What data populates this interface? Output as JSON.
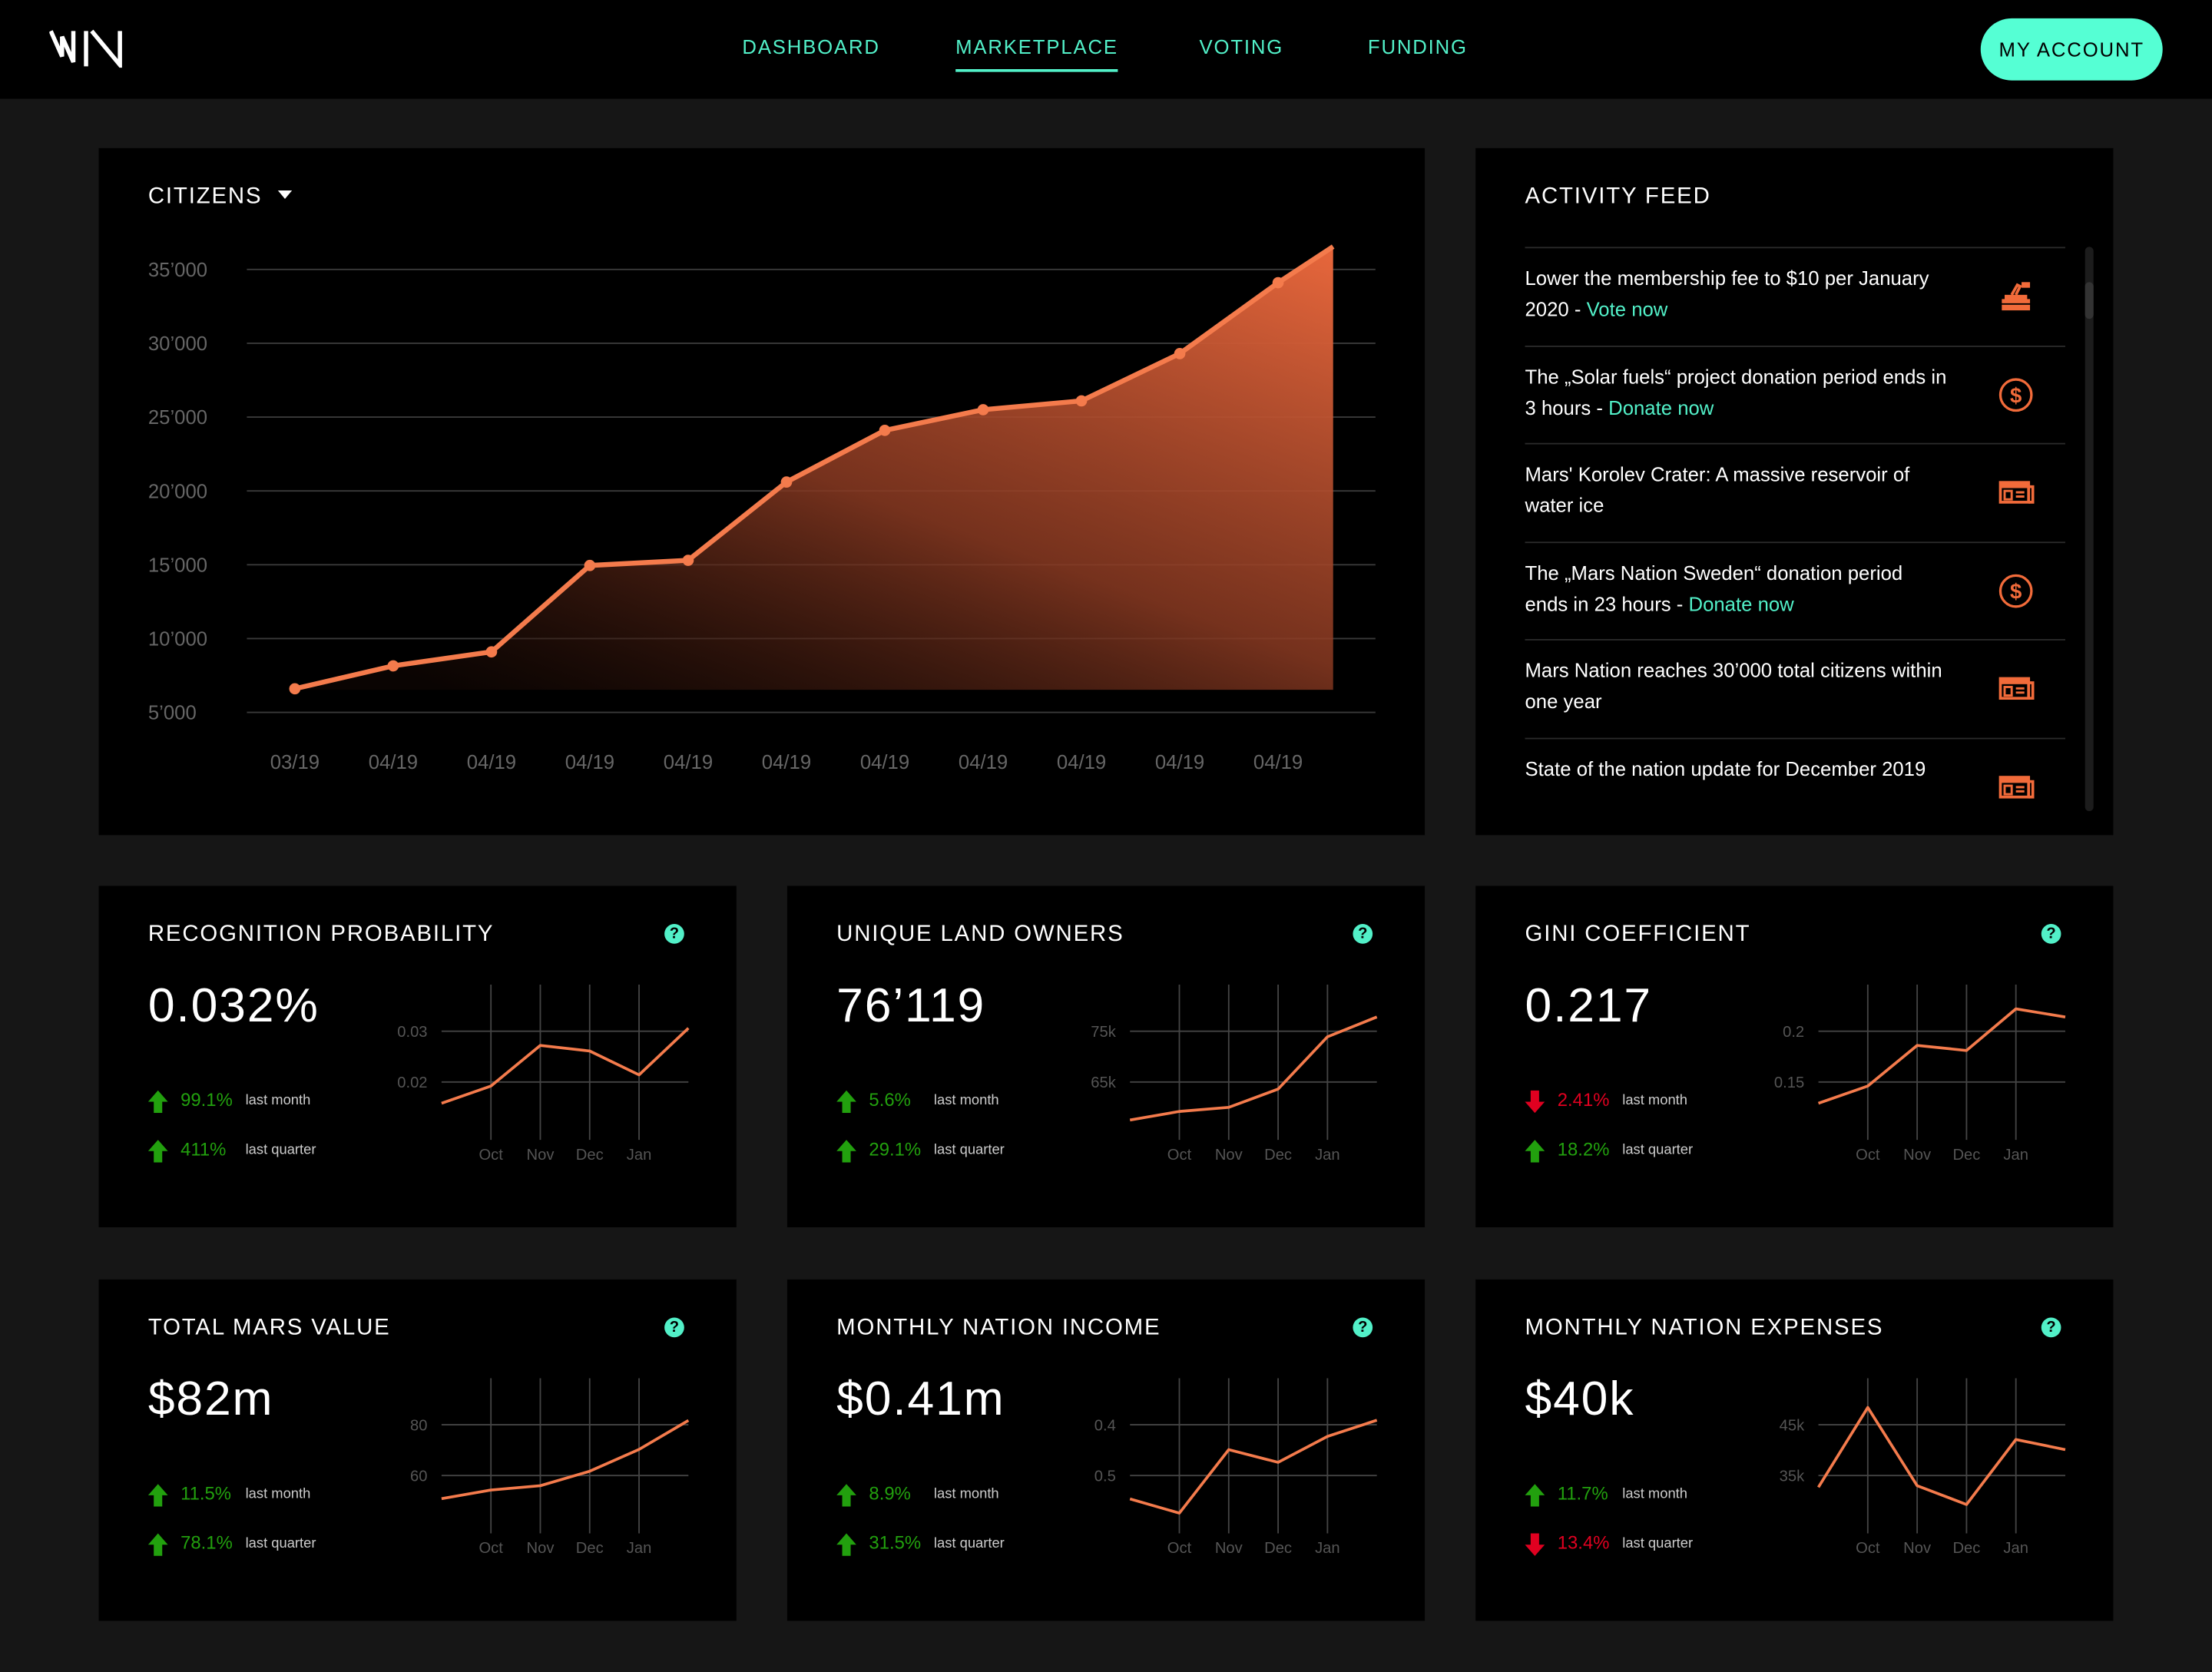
{
  "header": {
    "logo": "MN",
    "nav": [
      {
        "label": "DASHBOARD",
        "active": false
      },
      {
        "label": "MARKETPLACE",
        "active": true
      },
      {
        "label": "VOTING",
        "active": false
      },
      {
        "label": "FUNDING",
        "active": false
      }
    ],
    "account_label": "MY ACCOUNT"
  },
  "colors": {
    "accent": "#52f0c8",
    "line": "#f47b4c",
    "up": "#22a00e",
    "down": "#e00020",
    "icon": "#f26b3a"
  },
  "citizens": {
    "title": "CITIZENS",
    "dropdown_icon": "caret-down-icon"
  },
  "chart_data": [
    {
      "type": "area",
      "title": "CITIZENS",
      "x_labels": [
        "03/19",
        "04/19",
        "04/19",
        "04/19",
        "04/19",
        "04/19",
        "04/19",
        "04/19",
        "04/19",
        "04/19",
        "04/19"
      ],
      "values": [
        6600,
        8150,
        9100,
        14950,
        15300,
        20600,
        24100,
        25500,
        26100,
        29300,
        34100,
        36550
      ],
      "y_ticks": [
        "35’000",
        "30’000",
        "25’000",
        "20’000",
        "15’000",
        "10’000",
        "5’000"
      ],
      "y_tick_values": [
        35000,
        30000,
        25000,
        20000,
        15000,
        10000,
        5000
      ],
      "ylim": [
        5000,
        35000
      ],
      "grid": true
    },
    {
      "type": "line",
      "title": "RECOGNITION PROBABILITY",
      "x_labels": [
        "Oct",
        "Nov",
        "Dec",
        "Jan"
      ],
      "values": [
        0.0158,
        0.0192,
        0.0272,
        0.0261,
        0.0214,
        0.0306
      ],
      "y_ticks": [
        "0.03",
        "0.02"
      ],
      "y_tick_values": [
        0.03,
        0.02
      ],
      "grid": true
    },
    {
      "type": "line",
      "title": "UNIQUE LAND OWNERS",
      "x_labels": [
        "Oct",
        "Nov",
        "Dec",
        "Jan"
      ],
      "values": [
        57.5,
        59.2,
        60,
        63.6,
        73.9,
        77.8
      ],
      "y_ticks": [
        "75k",
        "65k"
      ],
      "y_tick_values": [
        75,
        65
      ],
      "grid": true
    },
    {
      "type": "line",
      "title": "GINI COEFFICIENT",
      "x_labels": [
        "Oct",
        "Nov",
        "Dec",
        "Jan"
      ],
      "values": [
        0.129,
        0.146,
        0.186,
        0.181,
        0.222,
        0.214
      ],
      "y_ticks": [
        "0.2",
        "0.15"
      ],
      "y_tick_values": [
        0.2,
        0.15
      ],
      "grid": true
    },
    {
      "type": "line",
      "title": "TOTAL MARS VALUE",
      "x_labels": [
        "Oct",
        "Nov",
        "Dec",
        "Jan"
      ],
      "values": [
        50.9,
        54.3,
        56,
        61.7,
        70.3,
        81.7
      ],
      "y_ticks": [
        "80",
        "60"
      ],
      "y_tick_values": [
        80,
        60
      ],
      "grid": true
    },
    {
      "type": "line",
      "title": "MONTHLY NATION INCOME",
      "x_labels": [
        "Oct",
        "Nov",
        "Dec",
        "Jan"
      ],
      "values": [
        0.546,
        0.574,
        0.449,
        0.474,
        0.423,
        0.391
      ],
      "y_ticks": [
        "0.4",
        "0.5"
      ],
      "y_tick_values": [
        0.4,
        0.5
      ],
      "grid": true
    },
    {
      "type": "line",
      "title": "MONTHLY NATION EXPENSES",
      "x_labels": [
        "Oct",
        "Nov",
        "Dec",
        "Jan"
      ],
      "values": [
        32.7,
        48.4,
        33,
        29.3,
        42.1,
        40.1
      ],
      "y_ticks": [
        "45k",
        "35k"
      ],
      "y_tick_values": [
        45,
        35
      ],
      "grid": true
    }
  ],
  "feed": {
    "title": "ACTIVITY FEED",
    "items": [
      {
        "text": "Lower the membership fee to $10 per January 2020 - ",
        "link": "Vote now",
        "icon": "ballot-box-icon"
      },
      {
        "text": "The „Solar fuels“ project donation period ends in 3 hours - ",
        "link": "Donate now",
        "icon": "dollar-circle-icon"
      },
      {
        "text": "Mars' Korolev Crater: A massive reservoir of water ice",
        "link": "",
        "icon": "newspaper-icon"
      },
      {
        "text": "The „Mars Nation Sweden“ donation period ends in 23 hours - ",
        "link": "Donate now",
        "icon": "dollar-circle-icon"
      },
      {
        "text": "Mars Nation reaches 30’000 total citizens within one year",
        "link": "",
        "icon": "newspaper-icon"
      },
      {
        "text": "State of the nation update for December 2019",
        "link": "",
        "icon": "newspaper-icon"
      }
    ]
  },
  "stats": [
    {
      "title": "RECOGNITION PROBABILITY",
      "value": "0.032%",
      "month": {
        "pct": "99.1%",
        "dir": "up",
        "label": "last month"
      },
      "quarter": {
        "pct": "411%",
        "dir": "up",
        "label": "last quarter"
      }
    },
    {
      "title": "UNIQUE LAND OWNERS",
      "value": "76’119",
      "month": {
        "pct": "5.6%",
        "dir": "up",
        "label": "last month"
      },
      "quarter": {
        "pct": "29.1%",
        "dir": "up",
        "label": "last quarter"
      }
    },
    {
      "title": "GINI COEFFICIENT",
      "value": "0.217",
      "month": {
        "pct": "2.41%",
        "dir": "down",
        "label": "last month"
      },
      "quarter": {
        "pct": "18.2%",
        "dir": "up",
        "label": "last quarter"
      }
    },
    {
      "title": "TOTAL MARS VALUE",
      "value": "$82m",
      "month": {
        "pct": "11.5%",
        "dir": "up",
        "label": "last month"
      },
      "quarter": {
        "pct": "78.1%",
        "dir": "up",
        "label": "last quarter"
      }
    },
    {
      "title": "MONTHLY NATION INCOME",
      "value": "$0.41m",
      "month": {
        "pct": "8.9%",
        "dir": "up",
        "label": "last month"
      },
      "quarter": {
        "pct": "31.5%",
        "dir": "up",
        "label": "last quarter"
      }
    },
    {
      "title": "MONTHLY NATION EXPENSES",
      "value": "$40k",
      "month": {
        "pct": "11.7%",
        "dir": "up",
        "label": "last month"
      },
      "quarter": {
        "pct": "13.4%",
        "dir": "down",
        "label": "last quarter"
      }
    }
  ],
  "help_label": "?"
}
